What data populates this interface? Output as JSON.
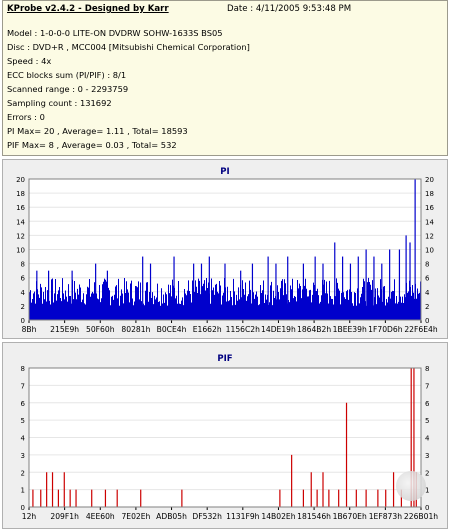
{
  "header": {
    "title": "KProbe v2.4.2 - Designed by Karr",
    "date": "Date : 4/11/2005 9:53:48 PM"
  },
  "info_lines": [
    "Model : 1-0-0-0 LITE-ON DVDRW SOHW-1633S BS05",
    "Disc : DVD+R , MCC004 [Mitsubishi Chemical Corporation]",
    "Speed : 4x",
    "ECC blocks sum (PI/PIF) : 8/1",
    "Scanned range : 0 - 2293759",
    "Sampling count : 131692",
    "Errors : 0",
    "PI Max= 20 , Average= 1.11 , Total= 18593",
    "PIF Max= 8 , Average= 0.03 , Total= 532"
  ],
  "chart_data": [
    {
      "type": "bar",
      "title": "PI",
      "ylim": [
        0,
        20
      ],
      "yticks": [
        0,
        2,
        4,
        6,
        8,
        10,
        12,
        14,
        16,
        18,
        20
      ],
      "xticks": [
        "8Bh",
        "215E9h",
        "50F60h",
        "80281h",
        "B0CE4h",
        "E1662h",
        "1156C2h",
        "14DE19h",
        "1864B2h",
        "1BEE39h",
        "1F70D6h",
        "22F6E4h"
      ],
      "grid": true,
      "color": "#0000cc",
      "baseline_range": [
        2,
        6
      ],
      "spikes": [
        {
          "x": 0.02,
          "y": 7
        },
        {
          "x": 0.05,
          "y": 7
        },
        {
          "x": 0.11,
          "y": 7
        },
        {
          "x": 0.17,
          "y": 8
        },
        {
          "x": 0.2,
          "y": 7
        },
        {
          "x": 0.29,
          "y": 9
        },
        {
          "x": 0.31,
          "y": 8
        },
        {
          "x": 0.37,
          "y": 9
        },
        {
          "x": 0.42,
          "y": 8
        },
        {
          "x": 0.44,
          "y": 8
        },
        {
          "x": 0.46,
          "y": 9
        },
        {
          "x": 0.5,
          "y": 8
        },
        {
          "x": 0.54,
          "y": 7
        },
        {
          "x": 0.57,
          "y": 8
        },
        {
          "x": 0.61,
          "y": 9
        },
        {
          "x": 0.63,
          "y": 8
        },
        {
          "x": 0.66,
          "y": 9
        },
        {
          "x": 0.7,
          "y": 8
        },
        {
          "x": 0.73,
          "y": 9
        },
        {
          "x": 0.75,
          "y": 8
        },
        {
          "x": 0.78,
          "y": 11
        },
        {
          "x": 0.8,
          "y": 9
        },
        {
          "x": 0.82,
          "y": 8
        },
        {
          "x": 0.84,
          "y": 9
        },
        {
          "x": 0.86,
          "y": 10
        },
        {
          "x": 0.88,
          "y": 9
        },
        {
          "x": 0.9,
          "y": 8
        },
        {
          "x": 0.92,
          "y": 10
        },
        {
          "x": 0.945,
          "y": 10
        },
        {
          "x": 0.962,
          "y": 12
        },
        {
          "x": 0.972,
          "y": 11
        },
        {
          "x": 0.985,
          "y": 20
        }
      ]
    },
    {
      "type": "bar",
      "title": "PIF",
      "ylim": [
        0,
        8
      ],
      "yticks": [
        0,
        1,
        2,
        3,
        4,
        5,
        6,
        7,
        8
      ],
      "xticks": [
        "12h",
        "209F1h",
        "4EE60h",
        "7E02Eh",
        "ADB05h",
        "DF532h",
        "1131F9h",
        "14B02Eh",
        "181546h",
        "1B670Eh",
        "1EF873h",
        "226B01h"
      ],
      "grid": true,
      "color": "#cc0000",
      "spikes": [
        {
          "x": 0.01,
          "y": 1
        },
        {
          "x": 0.03,
          "y": 1
        },
        {
          "x": 0.045,
          "y": 2
        },
        {
          "x": 0.06,
          "y": 2
        },
        {
          "x": 0.075,
          "y": 1
        },
        {
          "x": 0.09,
          "y": 2
        },
        {
          "x": 0.105,
          "y": 1
        },
        {
          "x": 0.12,
          "y": 1
        },
        {
          "x": 0.16,
          "y": 1
        },
        {
          "x": 0.195,
          "y": 1
        },
        {
          "x": 0.225,
          "y": 1
        },
        {
          "x": 0.285,
          "y": 1
        },
        {
          "x": 0.39,
          "y": 1
        },
        {
          "x": 0.64,
          "y": 1
        },
        {
          "x": 0.67,
          "y": 3
        },
        {
          "x": 0.7,
          "y": 1
        },
        {
          "x": 0.72,
          "y": 2
        },
        {
          "x": 0.735,
          "y": 1
        },
        {
          "x": 0.75,
          "y": 2
        },
        {
          "x": 0.765,
          "y": 1
        },
        {
          "x": 0.79,
          "y": 1
        },
        {
          "x": 0.81,
          "y": 6
        },
        {
          "x": 0.835,
          "y": 1
        },
        {
          "x": 0.86,
          "y": 1
        },
        {
          "x": 0.89,
          "y": 1
        },
        {
          "x": 0.91,
          "y": 1
        },
        {
          "x": 0.93,
          "y": 2
        },
        {
          "x": 0.95,
          "y": 1
        },
        {
          "x": 0.975,
          "y": 8
        },
        {
          "x": 0.982,
          "y": 8
        },
        {
          "x": 0.988,
          "y": 2
        }
      ]
    }
  ]
}
